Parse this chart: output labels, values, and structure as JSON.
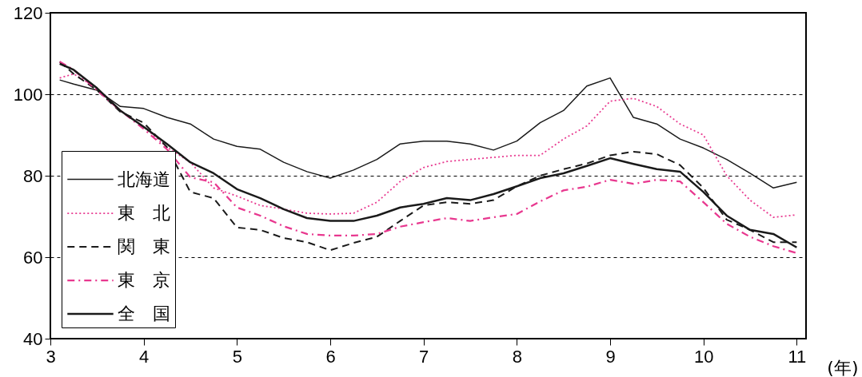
{
  "chart_data": {
    "type": "line",
    "xlabel": "(年)",
    "x": [
      3.1,
      3.25,
      3.5,
      3.75,
      4,
      4.25,
      4.5,
      4.75,
      5,
      5.25,
      5.5,
      5.75,
      6,
      6.25,
      6.5,
      6.75,
      7,
      7.25,
      7.5,
      7.75,
      8,
      8.25,
      8.5,
      8.75,
      9,
      9.25,
      9.5,
      9.75,
      10,
      10.25,
      10.5,
      10.75,
      11
    ],
    "series": [
      {
        "name": "北海道",
        "color": "#1a1a1a",
        "line_style": "solid",
        "values": [
          103.5,
          102.5,
          101,
          97,
          96.5,
          94.3,
          92.7,
          89,
          87.2,
          86.5,
          83.3,
          81,
          79.4,
          81.4,
          84,
          87.8,
          88.5,
          88.5,
          87.8,
          86.3,
          88.5,
          93,
          96,
          102,
          104,
          94.3,
          92.7,
          89,
          86.8,
          84,
          80.6,
          77,
          78.4
        ]
      },
      {
        "name": "東　北",
        "color": "#e8388f",
        "line_style": "dotted",
        "values": [
          104,
          105,
          101.5,
          96,
          92,
          87,
          83.3,
          77,
          75,
          72.7,
          71.8,
          70.8,
          70.6,
          70.8,
          73.5,
          78.6,
          82,
          83.5,
          84,
          84.5,
          85,
          85,
          89,
          92.2,
          98.3,
          99,
          97,
          92.7,
          90,
          80,
          74,
          69.8,
          70.4
        ]
      },
      {
        "name": "関　東",
        "color": "#1a1a1a",
        "line_style": "dashed",
        "values": [
          108,
          105,
          101,
          95.7,
          93,
          87,
          76,
          74.5,
          67.3,
          66.7,
          64.7,
          63.7,
          61.7,
          63.5,
          65,
          68.9,
          72.7,
          73.5,
          73.1,
          74,
          77.4,
          80,
          81.6,
          83,
          85,
          85.9,
          85.3,
          82.6,
          77,
          69.2,
          66.7,
          63.7,
          63.7
        ]
      },
      {
        "name": "東　京",
        "color": "#e8388f",
        "line_style": "dashdot",
        "values": [
          108,
          106,
          101,
          96,
          91.5,
          86.5,
          79.6,
          78.4,
          72.2,
          70.2,
          67.6,
          65.7,
          65.3,
          65.3,
          65.7,
          67.5,
          68.6,
          69.6,
          68.9,
          69.8,
          70.6,
          73.7,
          76.4,
          77.3,
          79,
          78,
          79,
          78.6,
          73.5,
          68.2,
          65,
          62.7,
          61
        ]
      },
      {
        "name": "全　国",
        "color": "#1a1a1a",
        "line_style": "solid",
        "values": [
          107.5,
          106,
          101.5,
          96,
          92,
          87.8,
          83.3,
          80.6,
          76.7,
          74.5,
          71.8,
          69.6,
          68.9,
          68.9,
          70.2,
          72.2,
          73.1,
          74.5,
          74,
          75.5,
          77.4,
          79.4,
          80.6,
          82.4,
          84.3,
          82.9,
          81.6,
          81,
          76,
          70.2,
          66.7,
          65.7,
          62.4
        ]
      }
    ],
    "xlim": [
      3,
      11.1
    ],
    "xticks": [
      3,
      4,
      5,
      6,
      7,
      8,
      9,
      10,
      11
    ],
    "ylim": [
      40,
      120
    ],
    "yticks": [
      40,
      60,
      80,
      100,
      120
    ],
    "grid": "y",
    "legend": "bottom left"
  }
}
